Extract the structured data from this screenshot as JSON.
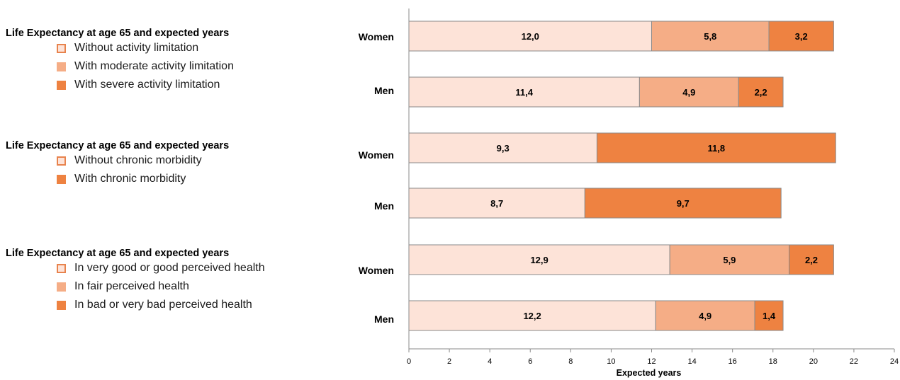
{
  "colors": {
    "light": "#fde3d8",
    "light_border": "#e8834d",
    "mid": "#f5ad86",
    "dark": "#ee8241",
    "bar_border": "#8a8a8a",
    "axis": "#8a8a8a"
  },
  "legends": [
    {
      "title": "Life Expectancy at age 65 and expected years",
      "items": [
        {
          "label": "Without activity limitation",
          "color": "light"
        },
        {
          "label": "With moderate activity limitation",
          "color": "mid"
        },
        {
          "label": "With severe activity limitation",
          "color": "dark"
        }
      ]
    },
    {
      "title": "Life Expectancy at age 65 and expected years",
      "items": [
        {
          "label": "Without chronic morbidity",
          "color": "light"
        },
        {
          "label": "With chronic morbidity",
          "color": "dark"
        }
      ]
    },
    {
      "title": "Life Expectancy at age 65 and expected years",
      "items": [
        {
          "label": "In very good or good perceived health",
          "color": "light"
        },
        {
          "label": "In fair perceived health",
          "color": "mid"
        },
        {
          "label": "In bad or very bad perceived health",
          "color": "dark"
        }
      ]
    }
  ],
  "chart_data": {
    "type": "bar",
    "orientation": "horizontal",
    "stacked": true,
    "xlabel": "Expected years",
    "xlim": [
      0,
      24
    ],
    "xticks": [
      "0",
      "2",
      "4",
      "6",
      "8",
      "10",
      "12",
      "14",
      "16",
      "18",
      "20",
      "22",
      "24"
    ],
    "grid": false,
    "bars": [
      {
        "category": "Women",
        "segments": [
          {
            "value": 12.0,
            "label": "12,0",
            "color": "light"
          },
          {
            "value": 5.8,
            "label": "5,8",
            "color": "mid"
          },
          {
            "value": 3.2,
            "label": "3,2",
            "color": "dark"
          }
        ]
      },
      {
        "category": "Men",
        "segments": [
          {
            "value": 11.4,
            "label": "11,4",
            "color": "light"
          },
          {
            "value": 4.9,
            "label": "4,9",
            "color": "mid"
          },
          {
            "value": 2.2,
            "label": "2,2",
            "color": "dark"
          }
        ]
      },
      {
        "category": "Women",
        "segments": [
          {
            "value": 9.3,
            "label": "9,3",
            "color": "light"
          },
          {
            "value": 11.8,
            "label": "11,8",
            "color": "dark"
          }
        ]
      },
      {
        "category": "Men",
        "segments": [
          {
            "value": 8.7,
            "label": "8,7",
            "color": "light"
          },
          {
            "value": 9.7,
            "label": "9,7",
            "color": "dark"
          }
        ]
      },
      {
        "category": "Women",
        "segments": [
          {
            "value": 12.9,
            "label": "12,9",
            "color": "light"
          },
          {
            "value": 5.9,
            "label": "5,9",
            "color": "mid"
          },
          {
            "value": 2.2,
            "label": "2,2",
            "color": "dark"
          }
        ]
      },
      {
        "category": "Men",
        "segments": [
          {
            "value": 12.2,
            "label": "12,2",
            "color": "light"
          },
          {
            "value": 4.9,
            "label": "4,9",
            "color": "mid"
          },
          {
            "value": 1.4,
            "label": "1,4",
            "color": "dark"
          }
        ]
      }
    ]
  }
}
